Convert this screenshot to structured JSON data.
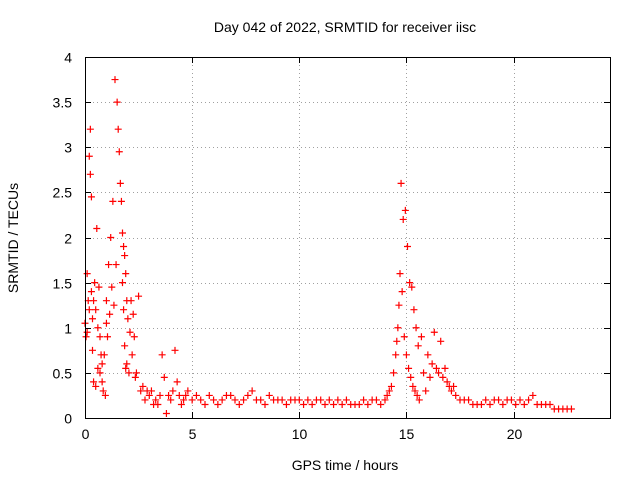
{
  "chart_data": {
    "type": "scatter",
    "title": "Day 042 of 2022, SRMTID for receiver iisc",
    "xlabel": "GPS time / hours",
    "ylabel": "SRMTID / TECUs",
    "xlim": [
      0,
      24.5
    ],
    "ylim": [
      0,
      4
    ],
    "x_ticks": [
      0,
      5,
      10,
      15,
      20
    ],
    "x_tick_labels": [
      "0",
      "5",
      "10",
      "15",
      "20"
    ],
    "y_ticks": [
      0,
      0.5,
      1,
      1.5,
      2,
      2.5,
      3,
      3.5,
      4
    ],
    "y_tick_labels": [
      "0",
      "0.5",
      "1",
      "1.5",
      "2",
      "2.5",
      "3",
      "3.5",
      "4"
    ],
    "grid": true,
    "marker": "+",
    "series": [
      {
        "name": "SRMTID",
        "color": "#ff0000",
        "x": [
          0.0,
          0.05,
          0.1,
          0.1,
          0.15,
          0.2,
          0.2,
          0.25,
          0.25,
          0.3,
          0.3,
          0.35,
          0.35,
          0.4,
          0.4,
          0.45,
          0.5,
          0.5,
          0.55,
          0.6,
          0.6,
          0.65,
          0.7,
          0.7,
          0.75,
          0.8,
          0.8,
          0.85,
          0.9,
          0.95,
          1.0,
          1.0,
          1.05,
          1.1,
          1.15,
          1.2,
          1.25,
          1.3,
          1.35,
          1.4,
          1.45,
          1.5,
          1.55,
          1.6,
          1.65,
          1.7,
          1.75,
          1.75,
          1.8,
          1.8,
          1.85,
          1.85,
          1.9,
          1.9,
          1.95,
          1.95,
          2.0,
          2.05,
          2.1,
          2.15,
          2.2,
          2.25,
          2.3,
          2.35,
          2.4,
          2.5,
          2.6,
          2.7,
          2.8,
          2.9,
          3.0,
          3.1,
          3.2,
          3.3,
          3.4,
          3.5,
          3.6,
          3.7,
          3.8,
          3.9,
          4.0,
          4.1,
          4.2,
          4.3,
          4.4,
          4.5,
          4.6,
          4.7,
          4.8,
          5.0,
          5.2,
          5.4,
          5.6,
          5.8,
          6.0,
          6.2,
          6.4,
          6.6,
          6.8,
          7.0,
          7.2,
          7.4,
          7.6,
          7.8,
          8.0,
          8.2,
          8.4,
          8.6,
          8.8,
          9.0,
          9.2,
          9.4,
          9.6,
          9.8,
          10.0,
          10.2,
          10.4,
          10.6,
          10.8,
          11.0,
          11.2,
          11.4,
          11.6,
          11.8,
          12.0,
          12.2,
          12.4,
          12.6,
          12.8,
          13.0,
          13.2,
          13.4,
          13.6,
          13.8,
          14.0,
          14.1,
          14.2,
          14.3,
          14.4,
          14.5,
          14.55,
          14.6,
          14.65,
          14.7,
          14.75,
          14.8,
          14.85,
          14.9,
          14.95,
          15.0,
          15.05,
          15.1,
          15.15,
          15.2,
          15.25,
          15.3,
          15.35,
          15.4,
          15.45,
          15.5,
          15.55,
          15.6,
          15.7,
          15.8,
          15.9,
          16.0,
          16.1,
          16.2,
          16.3,
          16.4,
          16.5,
          16.6,
          16.7,
          16.8,
          16.9,
          17.0,
          17.1,
          17.2,
          17.3,
          17.5,
          17.7,
          17.9,
          18.1,
          18.3,
          18.5,
          18.7,
          18.9,
          19.1,
          19.3,
          19.5,
          19.7,
          19.9,
          20.1,
          20.3,
          20.5,
          20.7,
          20.9,
          21.1,
          21.3,
          21.5,
          21.7,
          21.9,
          22.1,
          22.3,
          22.5,
          22.7
        ],
        "y": [
          1.05,
          0.9,
          1.6,
          0.95,
          1.3,
          2.9,
          1.2,
          3.2,
          2.7,
          2.45,
          1.4,
          1.1,
          0.75,
          1.3,
          0.4,
          1.5,
          0.35,
          1.2,
          2.1,
          1.0,
          0.55,
          1.45,
          0.9,
          0.5,
          0.7,
          0.4,
          0.6,
          0.3,
          0.7,
          0.25,
          1.05,
          1.3,
          0.9,
          1.7,
          1.15,
          2.0,
          1.45,
          2.4,
          1.25,
          3.75,
          1.7,
          3.5,
          3.2,
          2.95,
          2.6,
          2.4,
          2.05,
          1.5,
          1.9,
          1.2,
          1.8,
          0.8,
          1.6,
          0.55,
          1.3,
          0.6,
          1.1,
          0.5,
          0.95,
          1.3,
          0.7,
          1.15,
          0.9,
          0.45,
          0.5,
          1.35,
          0.3,
          0.35,
          0.2,
          0.3,
          0.25,
          0.3,
          0.15,
          0.2,
          0.15,
          0.25,
          0.7,
          0.45,
          0.05,
          0.25,
          0.2,
          0.3,
          0.75,
          0.4,
          0.25,
          0.15,
          0.2,
          0.25,
          0.3,
          0.2,
          0.25,
          0.2,
          0.15,
          0.25,
          0.2,
          0.15,
          0.2,
          0.25,
          0.25,
          0.2,
          0.15,
          0.2,
          0.25,
          0.3,
          0.2,
          0.2,
          0.15,
          0.25,
          0.2,
          0.2,
          0.2,
          0.15,
          0.2,
          0.2,
          0.2,
          0.15,
          0.2,
          0.15,
          0.2,
          0.2,
          0.15,
          0.2,
          0.15,
          0.2,
          0.15,
          0.2,
          0.15,
          0.15,
          0.15,
          0.2,
          0.15,
          0.2,
          0.2,
          0.15,
          0.2,
          0.25,
          0.3,
          0.35,
          0.5,
          0.7,
          0.85,
          1.0,
          1.25,
          1.6,
          2.6,
          1.4,
          2.2,
          0.9,
          2.3,
          0.7,
          1.9,
          0.55,
          1.5,
          0.45,
          1.45,
          0.35,
          1.2,
          0.3,
          1.0,
          0.25,
          0.8,
          0.2,
          0.9,
          0.5,
          0.3,
          0.7,
          0.45,
          0.6,
          0.95,
          0.55,
          0.5,
          0.85,
          0.45,
          0.55,
          0.4,
          0.35,
          0.3,
          0.35,
          0.25,
          0.2,
          0.2,
          0.2,
          0.15,
          0.15,
          0.15,
          0.2,
          0.15,
          0.2,
          0.2,
          0.15,
          0.2,
          0.2,
          0.15,
          0.2,
          0.15,
          0.2,
          0.25,
          0.15,
          0.15,
          0.15,
          0.15,
          0.1,
          0.1,
          0.1,
          0.1,
          0.1
        ]
      }
    ]
  }
}
